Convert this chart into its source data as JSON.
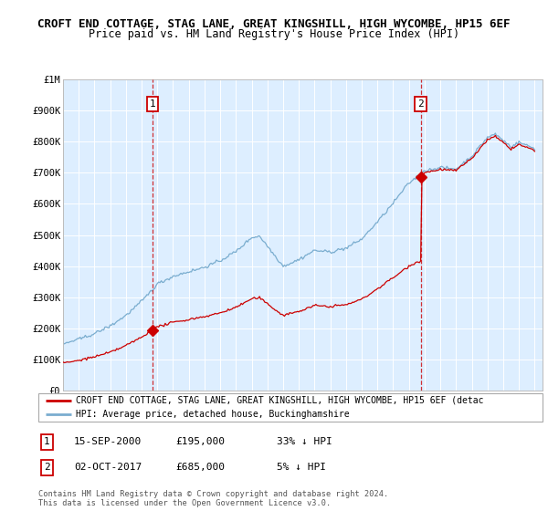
{
  "title": "CROFT END COTTAGE, STAG LANE, GREAT KINGSHILL, HIGH WYCOMBE, HP15 6EF",
  "subtitle": "Price paid vs. HM Land Registry's House Price Index (HPI)",
  "legend_line1": "CROFT END COTTAGE, STAG LANE, GREAT KINGSHILL, HIGH WYCOMBE, HP15 6EF (detac",
  "legend_line2": "HPI: Average price, detached house, Buckinghamshire",
  "footer1": "Contains HM Land Registry data © Crown copyright and database right 2024.",
  "footer2": "This data is licensed under the Open Government Licence v3.0.",
  "transaction1_date": "15-SEP-2000",
  "transaction1_price": "£195,000",
  "transaction1_hpi": "33% ↓ HPI",
  "transaction2_date": "02-OCT-2017",
  "transaction2_price": "£685,000",
  "transaction2_hpi": "5% ↓ HPI",
  "red_color": "#cc0000",
  "blue_color": "#7aadcf",
  "bg_color": "#ddeeff",
  "ylim": [
    0,
    1000000
  ],
  "yticks": [
    0,
    100000,
    200000,
    300000,
    400000,
    500000,
    600000,
    700000,
    800000,
    900000,
    1000000
  ],
  "ytick_labels": [
    "£0",
    "£100K",
    "£200K",
    "£300K",
    "£400K",
    "£500K",
    "£600K",
    "£700K",
    "£800K",
    "£900K",
    "£1M"
  ],
  "transaction1_x": 2000.71,
  "transaction1_y": 195000,
  "transaction2_x": 2017.75,
  "transaction2_y": 685000,
  "vline1_x": 2000.71,
  "vline2_x": 2017.75,
  "xmin": 1995,
  "xmax": 2025.5
}
